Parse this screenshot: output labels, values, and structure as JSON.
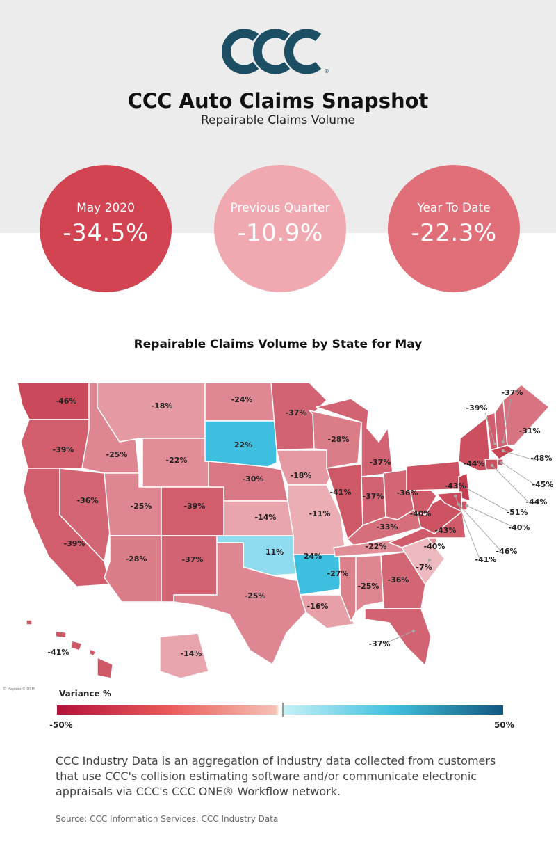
{
  "header": {
    "brand": "CCC",
    "title": "CCC Auto Claims Snapshot",
    "subtitle": "Repairable Claims Volume"
  },
  "stats": [
    {
      "label": "May 2020",
      "value": "-34.5%",
      "color": "#d24452"
    },
    {
      "label": "Previous Quarter",
      "value": "-10.9%",
      "color": "#f0a9b0"
    },
    {
      "label": "Year To Date",
      "value": "-22.3%",
      "color": "#e16f79"
    }
  ],
  "map": {
    "title": "Repairable Claims Volume by State for May",
    "attribution": "© Mapbox © OSM",
    "legend": {
      "title": "Variance %",
      "min": "-50%",
      "max": "50%"
    },
    "states": [
      {
        "state": "WA",
        "variance": "-46%"
      },
      {
        "state": "OR",
        "variance": "-39%"
      },
      {
        "state": "CA",
        "variance": "-39%"
      },
      {
        "state": "ID",
        "variance": "-25%"
      },
      {
        "state": "NV",
        "variance": "-36%"
      },
      {
        "state": "MT",
        "variance": "-18%"
      },
      {
        "state": "WY",
        "variance": "-22%"
      },
      {
        "state": "UT",
        "variance": "-25%"
      },
      {
        "state": "AZ",
        "variance": "-28%"
      },
      {
        "state": "CO",
        "variance": "-39%"
      },
      {
        "state": "NM",
        "variance": "-37%"
      },
      {
        "state": "ND",
        "variance": "-24%"
      },
      {
        "state": "SD",
        "variance": "22%"
      },
      {
        "state": "NE",
        "variance": "-30%"
      },
      {
        "state": "KS",
        "variance": "-14%"
      },
      {
        "state": "OK",
        "variance": "11%"
      },
      {
        "state": "TX",
        "variance": "-25%"
      },
      {
        "state": "MN",
        "variance": "-37%"
      },
      {
        "state": "IA",
        "variance": "-18%"
      },
      {
        "state": "MO",
        "variance": "-11%"
      },
      {
        "state": "AR",
        "variance": "24%"
      },
      {
        "state": "LA",
        "variance": "-16%"
      },
      {
        "state": "WI",
        "variance": "-28%"
      },
      {
        "state": "IL",
        "variance": "-41%"
      },
      {
        "state": "MI",
        "variance": "-37%"
      },
      {
        "state": "IN",
        "variance": "-37%"
      },
      {
        "state": "OH",
        "variance": "-36%"
      },
      {
        "state": "KY",
        "variance": "-33%"
      },
      {
        "state": "TN",
        "variance": "-22%"
      },
      {
        "state": "MS",
        "variance": "-27%"
      },
      {
        "state": "AL",
        "variance": "-25%"
      },
      {
        "state": "GA",
        "variance": "-36%"
      },
      {
        "state": "FL",
        "variance": "-37%"
      },
      {
        "state": "SC",
        "variance": "-7%"
      },
      {
        "state": "NC",
        "variance": "-40%"
      },
      {
        "state": "VA",
        "variance": "-43%"
      },
      {
        "state": "WV",
        "variance": "-40%"
      },
      {
        "state": "PA",
        "variance": "-43%"
      },
      {
        "state": "NY",
        "variance": "-44%"
      },
      {
        "state": "VT",
        "variance": "-39%"
      },
      {
        "state": "NH",
        "variance": "-37%"
      },
      {
        "state": "ME",
        "variance": "-31%"
      },
      {
        "state": "MA",
        "variance": "-48%"
      },
      {
        "state": "RI",
        "variance": "-45%"
      },
      {
        "state": "CT",
        "variance": "-44%"
      },
      {
        "state": "NJ",
        "variance": "-51%"
      },
      {
        "state": "DE",
        "variance": "-40%"
      },
      {
        "state": "MD",
        "variance": "-46%"
      },
      {
        "state": "DC",
        "variance": "-41%"
      },
      {
        "state": "AK",
        "variance": "-14%"
      },
      {
        "state": "HI",
        "variance": "-41%"
      }
    ]
  },
  "footer": {
    "description": "CCC Industry Data is an aggregation of industry data collected from customers that use CCC's collision estimating software and/or communicate electronic appraisals via CCC's CCC ONE® Workflow network.",
    "source": "Source: CCC Information Services, CCC Industry Data"
  }
}
